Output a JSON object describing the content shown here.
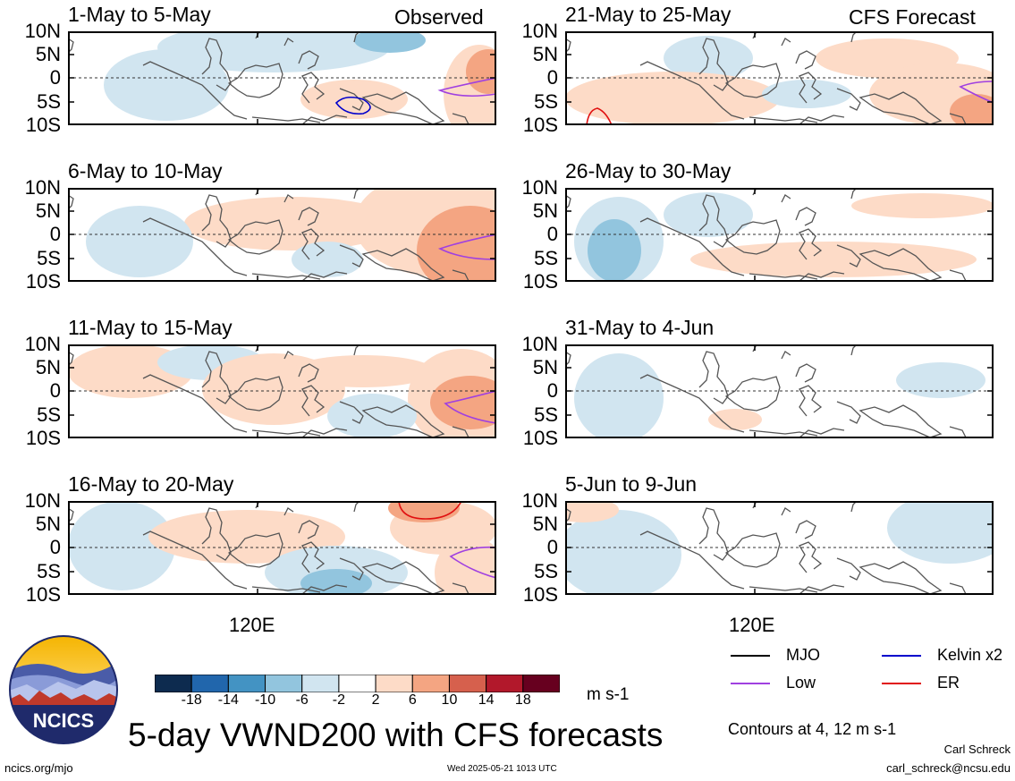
{
  "header": {
    "left": "Observed",
    "right": "CFS Forecast"
  },
  "panels": {
    "obs": [
      "1-May to 5-May",
      "6-May to 10-May",
      "11-May to 15-May",
      "16-May to 20-May"
    ],
    "fcst": [
      "21-May to 25-May",
      "26-May to 30-May",
      "31-May to 4-Jun",
      "5-Jun to 9-Jun"
    ]
  },
  "axes": {
    "lat_ticks": [
      "10N",
      "5N",
      "0",
      "5S",
      "10S"
    ],
    "lon_tick": "120E"
  },
  "colorbar": {
    "labels": [
      "-18",
      "-14",
      "-10",
      "-6",
      "-2",
      "2",
      "6",
      "10",
      "14",
      "18"
    ],
    "unit": "m s-1",
    "colors": [
      "#0d2b4f",
      "#2166ac",
      "#4393c3",
      "#92c5de",
      "#d1e5f0",
      "#ffffff",
      "#fddbc7",
      "#f4a582",
      "#d6604d",
      "#b2182b",
      "#67001f"
    ]
  },
  "legend": {
    "items": [
      {
        "label": "MJO",
        "color": "#000000"
      },
      {
        "label": "Kelvin x2",
        "color": "#0000cc"
      },
      {
        "label": "Low",
        "color": "#a040e0"
      },
      {
        "label": "ER",
        "color": "#e01010"
      }
    ],
    "contours": "Contours at 4, 12 m s-1"
  },
  "title": "5-day VWND200 with CFS forecasts",
  "logo_text": "NCICS",
  "footer": {
    "url": "ncics.org/mjo",
    "timestamp": "Wed 2025-05-21 1013 UTC",
    "author": "Carl Schreck",
    "email": "carl_schreck@ncsu.edu"
  }
}
